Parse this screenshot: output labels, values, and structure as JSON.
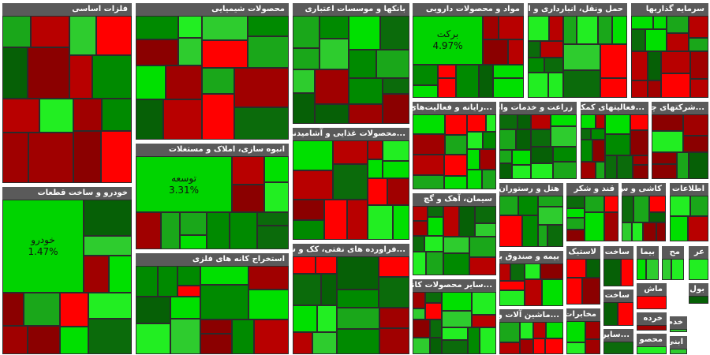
{
  "sectors": [
    {
      "title": "فلزات اساسی"
    },
    {
      "title": "محصولات شیمیایی"
    },
    {
      "title": "بانکها و موسسات اعتباری"
    },
    {
      "title": "مواد و محصولات دارویی",
      "tiles": [
        {
          "label": "برکت",
          "change": "4.97%"
        }
      ]
    },
    {
      "title": "حمل ونقل، انبارداری و ارتباطات"
    },
    {
      "title": "سرمایه گذاریها"
    },
    {
      "title": "...رایانه و فعالیت‌های وا"
    },
    {
      "title": "زراعت و خدمات وابسته"
    },
    {
      "title": "...فعالیتهای کمکی به"
    },
    {
      "title": "...شرکتهای چند ر"
    },
    {
      "title": "انبوه سازی، املاک و مستغلات",
      "tiles": [
        {
          "label": "توسعه",
          "change": "3.31%"
        }
      ]
    },
    {
      "title": "...محصولات غذایی و آشامیدنی به ج"
    },
    {
      "title": "خودرو و ساخت قطعات",
      "tiles": [
        {
          "label": "خودرو",
          "change": "1.47%"
        }
      ]
    },
    {
      "title": "سیمان، آهک و گچ"
    },
    {
      "title": "هتل و رستوران"
    },
    {
      "title": "قند و شکر"
    },
    {
      "title": "کاشی و س"
    },
    {
      "title": "اطلاعات و"
    },
    {
      "title": "استخراج کانه های فلزی"
    },
    {
      "title": "...فراورده های نفتی، کک و سوخت ه"
    },
    {
      "title": "...سایر محصولات کانی غ"
    },
    {
      "title": "بیمه و صندوق باز"
    },
    {
      "title": "...ماشین آلات و د"
    },
    {
      "title": "لاستیک"
    },
    {
      "title": "ساخت"
    },
    {
      "title": "ساخت"
    },
    {
      "title": "مخابرات"
    },
    {
      "title": "بیما"
    },
    {
      "title": "...سایر وا"
    },
    {
      "title": "ماش"
    },
    {
      "title": "خرده"
    },
    {
      "title": "محصو"
    },
    {
      "title": "مح"
    },
    {
      "title": "عر"
    },
    {
      "title": "بول"
    },
    {
      "title": "خدم"
    },
    {
      "title": "ابنی"
    }
  ]
}
